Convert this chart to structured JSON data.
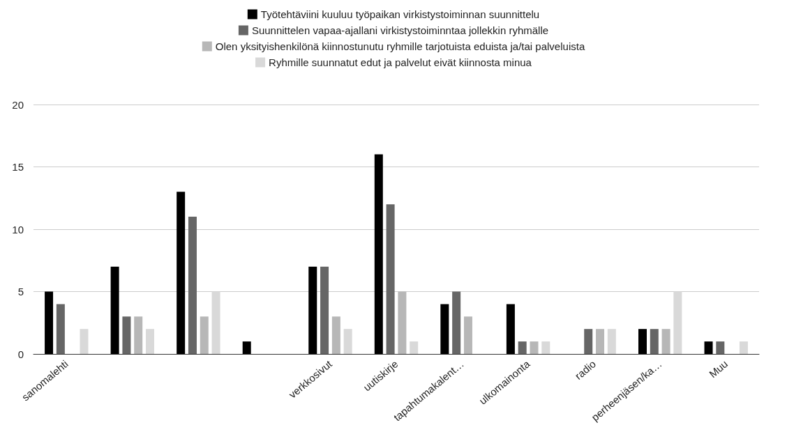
{
  "chart_data": {
    "type": "bar",
    "categories": [
      "sanomalehti",
      null,
      null,
      null,
      "verkkosivut",
      "uutiskirje",
      "tapahtumakalent…",
      "ulkomainonta",
      "radio",
      "perheenjäsen/ka…",
      "Muu"
    ],
    "series": [
      {
        "name": "Työtehtäviini kuuluu työpaikan virkistystoiminnan suunnittelu",
        "color": "#000000",
        "values": [
          5,
          7,
          13,
          1,
          7,
          16,
          4,
          4,
          0,
          2,
          1
        ]
      },
      {
        "name": "Suunnittelen vapaa-ajallani virkistystoiminntaa jollekkin ryhmälle",
        "color": "#666666",
        "values": [
          4,
          3,
          11,
          0,
          7,
          12,
          5,
          1,
          2,
          2,
          1
        ]
      },
      {
        "name": "Olen yksityishenkilönä kiinnostunutu ryhmille tarjotuista eduista ja/tai palveluista",
        "color": "#b7b7b7",
        "values": [
          0,
          3,
          3,
          0,
          3,
          5,
          3,
          1,
          2,
          2,
          0
        ]
      },
      {
        "name": "Ryhmille suunnatut edut ja palvelut eivät kiinnosta minua",
        "color": "#d9d9d9",
        "values": [
          2,
          2,
          5,
          0,
          2,
          1,
          0,
          1,
          2,
          5,
          1
        ]
      }
    ],
    "ylim": [
      0,
      20
    ],
    "yticks": [
      0,
      5,
      10,
      15,
      20
    ],
    "grid": "y",
    "legend": "top"
  }
}
